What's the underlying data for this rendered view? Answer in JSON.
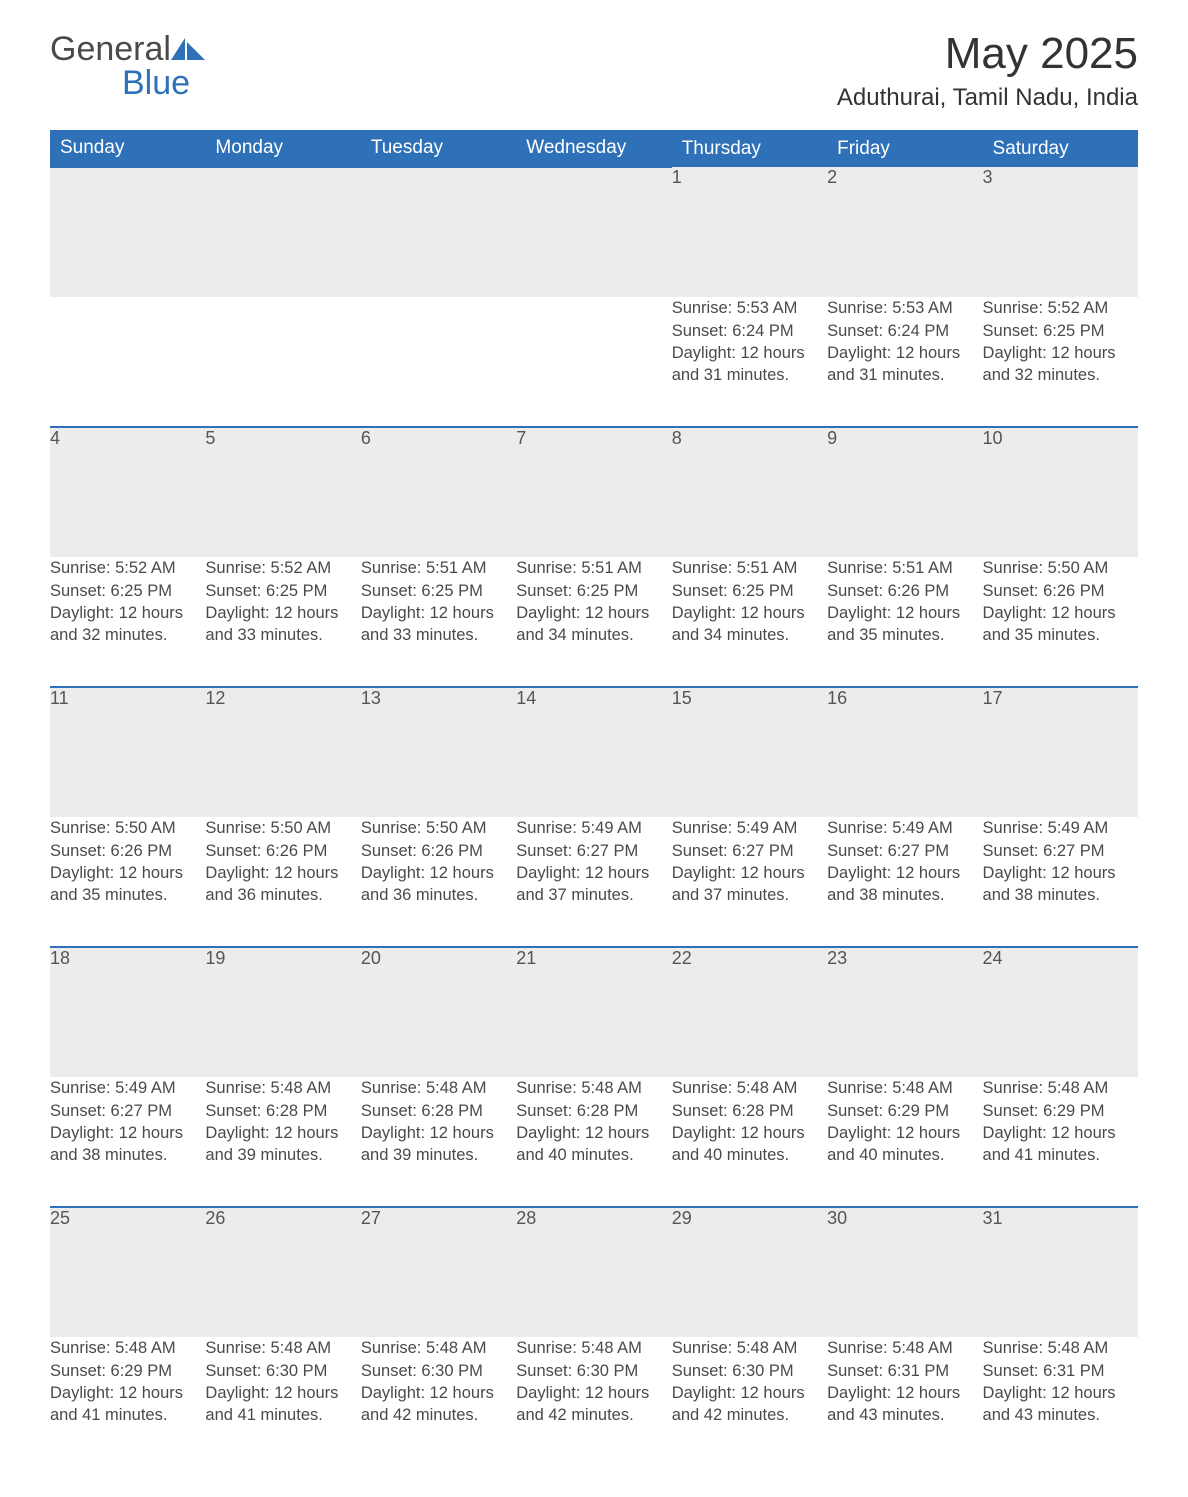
{
  "brand": {
    "word1": "General",
    "word2": "Blue",
    "logo_color": "#2f71b8"
  },
  "header": {
    "month_title": "May 2025",
    "location": "Aduthurai, Tamil Nadu, India"
  },
  "styling": {
    "header_bg": "#2f71b8",
    "header_fg": "#ffffff",
    "daynum_bg": "#ececec",
    "row_border": "#2f71b8",
    "text_color": "#4a4a4a",
    "page_bg": "#ffffff",
    "title_fontsize": 44,
    "location_fontsize": 24,
    "weekday_fontsize": 19,
    "cell_fontsize": 16.5
  },
  "weekdays": [
    "Sunday",
    "Monday",
    "Tuesday",
    "Wednesday",
    "Thursday",
    "Friday",
    "Saturday"
  ],
  "weeks": [
    [
      null,
      null,
      null,
      null,
      {
        "n": "1",
        "sr": "5:53 AM",
        "ss": "6:24 PM",
        "dl": "12 hours and 31 minutes."
      },
      {
        "n": "2",
        "sr": "5:53 AM",
        "ss": "6:24 PM",
        "dl": "12 hours and 31 minutes."
      },
      {
        "n": "3",
        "sr": "5:52 AM",
        "ss": "6:25 PM",
        "dl": "12 hours and 32 minutes."
      }
    ],
    [
      {
        "n": "4",
        "sr": "5:52 AM",
        "ss": "6:25 PM",
        "dl": "12 hours and 32 minutes."
      },
      {
        "n": "5",
        "sr": "5:52 AM",
        "ss": "6:25 PM",
        "dl": "12 hours and 33 minutes."
      },
      {
        "n": "6",
        "sr": "5:51 AM",
        "ss": "6:25 PM",
        "dl": "12 hours and 33 minutes."
      },
      {
        "n": "7",
        "sr": "5:51 AM",
        "ss": "6:25 PM",
        "dl": "12 hours and 34 minutes."
      },
      {
        "n": "8",
        "sr": "5:51 AM",
        "ss": "6:25 PM",
        "dl": "12 hours and 34 minutes."
      },
      {
        "n": "9",
        "sr": "5:51 AM",
        "ss": "6:26 PM",
        "dl": "12 hours and 35 minutes."
      },
      {
        "n": "10",
        "sr": "5:50 AM",
        "ss": "6:26 PM",
        "dl": "12 hours and 35 minutes."
      }
    ],
    [
      {
        "n": "11",
        "sr": "5:50 AM",
        "ss": "6:26 PM",
        "dl": "12 hours and 35 minutes."
      },
      {
        "n": "12",
        "sr": "5:50 AM",
        "ss": "6:26 PM",
        "dl": "12 hours and 36 minutes."
      },
      {
        "n": "13",
        "sr": "5:50 AM",
        "ss": "6:26 PM",
        "dl": "12 hours and 36 minutes."
      },
      {
        "n": "14",
        "sr": "5:49 AM",
        "ss": "6:27 PM",
        "dl": "12 hours and 37 minutes."
      },
      {
        "n": "15",
        "sr": "5:49 AM",
        "ss": "6:27 PM",
        "dl": "12 hours and 37 minutes."
      },
      {
        "n": "16",
        "sr": "5:49 AM",
        "ss": "6:27 PM",
        "dl": "12 hours and 38 minutes."
      },
      {
        "n": "17",
        "sr": "5:49 AM",
        "ss": "6:27 PM",
        "dl": "12 hours and 38 minutes."
      }
    ],
    [
      {
        "n": "18",
        "sr": "5:49 AM",
        "ss": "6:27 PM",
        "dl": "12 hours and 38 minutes."
      },
      {
        "n": "19",
        "sr": "5:48 AM",
        "ss": "6:28 PM",
        "dl": "12 hours and 39 minutes."
      },
      {
        "n": "20",
        "sr": "5:48 AM",
        "ss": "6:28 PM",
        "dl": "12 hours and 39 minutes."
      },
      {
        "n": "21",
        "sr": "5:48 AM",
        "ss": "6:28 PM",
        "dl": "12 hours and 40 minutes."
      },
      {
        "n": "22",
        "sr": "5:48 AM",
        "ss": "6:28 PM",
        "dl": "12 hours and 40 minutes."
      },
      {
        "n": "23",
        "sr": "5:48 AM",
        "ss": "6:29 PM",
        "dl": "12 hours and 40 minutes."
      },
      {
        "n": "24",
        "sr": "5:48 AM",
        "ss": "6:29 PM",
        "dl": "12 hours and 41 minutes."
      }
    ],
    [
      {
        "n": "25",
        "sr": "5:48 AM",
        "ss": "6:29 PM",
        "dl": "12 hours and 41 minutes."
      },
      {
        "n": "26",
        "sr": "5:48 AM",
        "ss": "6:30 PM",
        "dl": "12 hours and 41 minutes."
      },
      {
        "n": "27",
        "sr": "5:48 AM",
        "ss": "6:30 PM",
        "dl": "12 hours and 42 minutes."
      },
      {
        "n": "28",
        "sr": "5:48 AM",
        "ss": "6:30 PM",
        "dl": "12 hours and 42 minutes."
      },
      {
        "n": "29",
        "sr": "5:48 AM",
        "ss": "6:30 PM",
        "dl": "12 hours and 42 minutes."
      },
      {
        "n": "30",
        "sr": "5:48 AM",
        "ss": "6:31 PM",
        "dl": "12 hours and 43 minutes."
      },
      {
        "n": "31",
        "sr": "5:48 AM",
        "ss": "6:31 PM",
        "dl": "12 hours and 43 minutes."
      }
    ]
  ],
  "labels": {
    "sunrise": "Sunrise: ",
    "sunset": "Sunset: ",
    "daylight": "Daylight: "
  }
}
